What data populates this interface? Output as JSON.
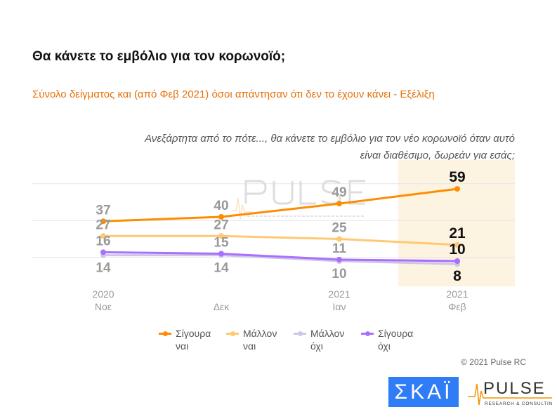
{
  "title": "Θα κάνετε το εμβόλιο για τον κορωνοϊό;",
  "subtitle": "Σύνολο δείγματος και (από Φεβ 2021) όσοι απάντησαν ότι δεν το έχουν κάνει - Εξέλιξη",
  "question": "Ανεξάρτητα από το πότε..., θα κάνετε το εμβόλιο για τον νέο κορωνοϊό όταν αυτό είναι διαθέσιμο, δωρεάν για εσάς;",
  "copyright": "© 2021 Pulse RC",
  "logos": {
    "skai": "ΣΚΑΪ",
    "pulse": "PULSE",
    "pulse_sub": "RESEARCH & CONSULTING"
  },
  "chart_data": {
    "type": "line",
    "categories": [
      "2020 Νοε",
      "Δεκ",
      "2021 Ιαν",
      "2021 Φεβ"
    ],
    "category_lines": [
      [
        "2020",
        "Νοε"
      ],
      [
        "",
        "Δεκ"
      ],
      [
        "2021",
        "Ιαν"
      ],
      [
        "2021",
        "Φεβ"
      ]
    ],
    "highlight": "2021 Φεβ",
    "grid": true,
    "legend_position": "bottom",
    "series": [
      {
        "name": "Σίγουρα ναι",
        "values": [
          37,
          40,
          49,
          59
        ],
        "color": "#ff8c00",
        "label_pos": "above"
      },
      {
        "name": "Μάλλον ναι",
        "values": [
          27,
          27,
          25,
          21
        ],
        "color": "#ffc973",
        "label_pos": "above"
      },
      {
        "name": "Μάλλον όχι",
        "values": [
          14,
          14,
          10,
          8
        ],
        "color": "#cfc6e6",
        "label_pos": "below"
      },
      {
        "name": "Σίγουρα όχι",
        "values": [
          16,
          15,
          11,
          10
        ],
        "color": "#a970ff",
        "label_pos": "above"
      }
    ],
    "legend_lines": [
      [
        "Σίγουρα",
        "ναι"
      ],
      [
        "Μάλλον",
        "ναι"
      ],
      [
        "Μάλλον",
        "όχι"
      ],
      [
        "Σίγουρα",
        "όχι"
      ]
    ]
  }
}
